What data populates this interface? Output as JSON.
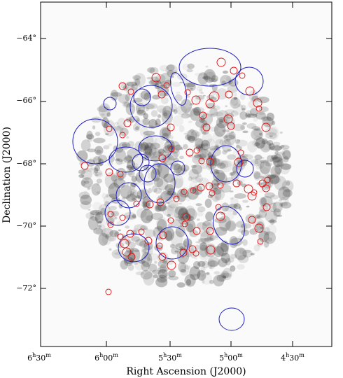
{
  "figure": {
    "xlabel": "Right Ascension (J2000)",
    "ylabel": "Declination (J2000)",
    "x_ticks": [
      {
        "h": "6",
        "m": "30"
      },
      {
        "h": "6",
        "m": "00"
      },
      {
        "h": "5",
        "m": "30"
      },
      {
        "h": "5",
        "m": "00"
      },
      {
        "h": "4",
        "m": "30"
      }
    ],
    "y_ticks": [
      "−64°",
      "−66°",
      "−68°",
      "−70°",
      "−72°"
    ],
    "colors": {
      "large_shells": "#1f1fbf",
      "small_shells": "#e01010",
      "emission": "#333333",
      "frame": "#000000"
    }
  }
}
